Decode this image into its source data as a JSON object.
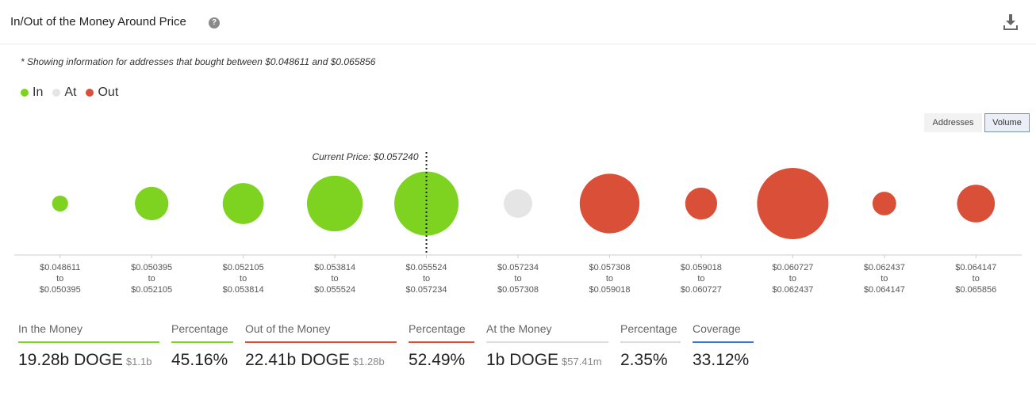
{
  "header": {
    "title": "In/Out of the Money Around Price",
    "help_icon": "?"
  },
  "note": "* Showing information for addresses that bought between $0.048611 and $0.065856",
  "legend": [
    {
      "label": "In",
      "color": "#7ed321"
    },
    {
      "label": "At",
      "color": "#e5e5e5"
    },
    {
      "label": "Out",
      "color": "#d94f38"
    }
  ],
  "toggles": {
    "addresses": "Addresses",
    "volume": "Volume",
    "active": "Volume"
  },
  "colors": {
    "in": "#7ed321",
    "at": "#e5e5e5",
    "out": "#d94f38",
    "coverage": "#3a78d6"
  },
  "chart_data": {
    "type": "bubble",
    "current_price_label": "Current Price: $0.057240",
    "current_price_index": 4.5,
    "size_unit": "relative volume (by area)",
    "buckets": [
      {
        "from": "$0.048611",
        "to_word": "to",
        "to": "$0.050395",
        "status": "in",
        "size": 0.05
      },
      {
        "from": "$0.050395",
        "to_word": "to",
        "to": "$0.052105",
        "status": "in",
        "size": 0.22
      },
      {
        "from": "$0.052105",
        "to_word": "to",
        "to": "$0.053814",
        "status": "in",
        "size": 0.33
      },
      {
        "from": "$0.053814",
        "to_word": "to",
        "to": "$0.055524",
        "status": "in",
        "size": 0.61
      },
      {
        "from": "$0.055524",
        "to_word": "to",
        "to": "$0.057234",
        "status": "in",
        "size": 0.81
      },
      {
        "from": "$0.057234",
        "to_word": "to",
        "to": "$0.057308",
        "status": "at",
        "size": 0.16
      },
      {
        "from": "$0.057308",
        "to_word": "to",
        "to": "$0.059018",
        "status": "out",
        "size": 0.7
      },
      {
        "from": "$0.059018",
        "to_word": "to",
        "to": "$0.060727",
        "status": "out",
        "size": 0.2
      },
      {
        "from": "$0.060727",
        "to_word": "to",
        "to": "$0.062437",
        "status": "out",
        "size": 1.0
      },
      {
        "from": "$0.062437",
        "to_word": "to",
        "to": "$0.064147",
        "status": "out",
        "size": 0.11
      },
      {
        "from": "$0.064147",
        "to_word": "to",
        "to": "$0.065856",
        "status": "out",
        "size": 0.28
      }
    ]
  },
  "stats": [
    {
      "label": "In the Money",
      "value": "19.28b DOGE",
      "sub": "$1.1b",
      "color": "#7ed321"
    },
    {
      "label": "Percentage",
      "value": "45.16%",
      "sub": "",
      "color": "#7ed321"
    },
    {
      "label": "Out of the Money",
      "value": "22.41b DOGE",
      "sub": "$1.28b",
      "color": "#d94f38"
    },
    {
      "label": "Percentage",
      "value": "52.49%",
      "sub": "",
      "color": "#d94f38"
    },
    {
      "label": "At the Money",
      "value": "1b DOGE",
      "sub": "$57.41m",
      "color": "#dddddd"
    },
    {
      "label": "Percentage",
      "value": "2.35%",
      "sub": "",
      "color": "#dddddd"
    },
    {
      "label": "Coverage",
      "value": "33.12%",
      "sub": "",
      "color": "#3a78d6"
    }
  ]
}
